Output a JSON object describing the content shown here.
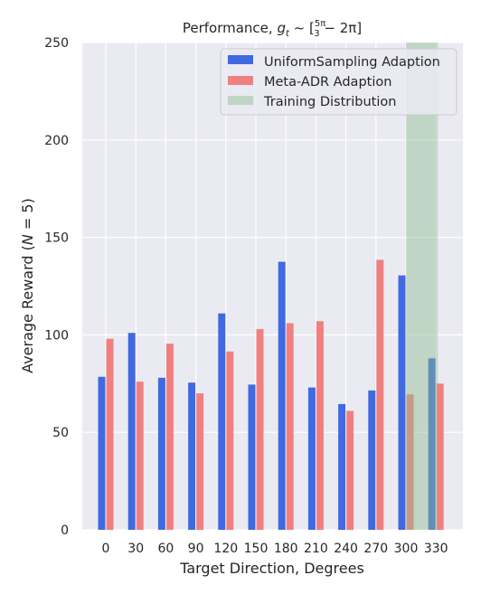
{
  "chart_data": {
    "type": "bar",
    "title_prefix": "Performance, ",
    "title_math": "g_t ~ [5π/3 − 2π]",
    "xlabel": "Target Direction, Degrees",
    "ylabel": "Average Reward (N = 5)",
    "categories": [
      "0",
      "30",
      "60",
      "90",
      "120",
      "150",
      "180",
      "210",
      "240",
      "270",
      "300",
      "330"
    ],
    "ylim": [
      0,
      250
    ],
    "yticks": [
      0,
      50,
      100,
      150,
      200,
      250
    ],
    "grid": true,
    "legend_position": "top-right",
    "series": [
      {
        "name": "UniformSampling Adaption",
        "color": "#4169e1",
        "values": [
          78.5,
          101,
          78,
          75.5,
          111,
          74.5,
          137.5,
          73,
          64.5,
          71.5,
          130.5,
          88
        ]
      },
      {
        "name": "Meta-ADR Adaption",
        "color": "#f08080",
        "values": [
          98,
          76,
          95.5,
          70,
          91.5,
          103,
          106,
          107,
          61,
          138.5,
          69.5,
          75
        ]
      }
    ],
    "shaded_region": {
      "name": "Training Distribution",
      "color": "#8fbc8f",
      "x_range": [
        "300",
        "330"
      ]
    }
  }
}
